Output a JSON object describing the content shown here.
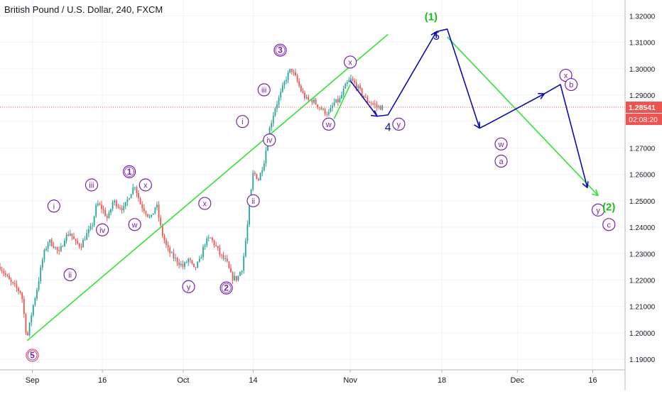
{
  "chart_data": {
    "type": "candlestick",
    "title": "British Pound / U.S. Dollar, 240, FXCM",
    "ylim": [
      1.186,
      1.326
    ],
    "y_ticks": [
      "1.19000",
      "1.20000",
      "1.21000",
      "1.22000",
      "1.23000",
      "1.24000",
      "1.25000",
      "1.26000",
      "1.27000",
      "1.28000",
      "1.29000",
      "1.30000",
      "1.31000",
      "1.32000"
    ],
    "x_domain": [
      "2018-08-28",
      "2018-12-22"
    ],
    "x_ticks": [
      {
        "date": "2018-09-03",
        "label": "Sep"
      },
      {
        "date": "2018-09-16",
        "label": "16"
      },
      {
        "date": "2018-10-01",
        "label": "Oct"
      },
      {
        "date": "2018-10-14",
        "label": "14"
      },
      {
        "date": "2018-11-01",
        "label": "Nov"
      },
      {
        "date": "2018-11-18",
        "label": "18"
      },
      {
        "date": "2018-12-02",
        "label": "Dec"
      },
      {
        "date": "2018-12-16",
        "label": "16"
      }
    ],
    "current_price": {
      "label": "1.28541",
      "value": 1.28541,
      "countdown": "02:08:20"
    },
    "colors": {
      "up": "#26a69a",
      "down": "#ef5350",
      "wave": "#0b0bb5",
      "trend": "#35e135",
      "label_purple": "#7a1fb0",
      "label_green": "#1bbd1b",
      "price": "#ef5350",
      "countdown": "#ef5350"
    },
    "price_path": [
      [
        "2018-08-28",
        1.225
      ],
      [
        "2018-08-30",
        1.219
      ],
      [
        "2018-09-01",
        1.215
      ],
      [
        "2018-09-02",
        1.1975
      ],
      [
        "2018-09-03",
        1.209
      ],
      [
        "2018-09-04",
        1.218
      ],
      [
        "2018-09-05",
        1.229
      ],
      [
        "2018-09-06",
        1.235
      ],
      [
        "2018-09-07",
        1.233
      ],
      [
        "2018-09-08",
        1.23
      ],
      [
        "2018-09-09",
        1.236
      ],
      [
        "2018-09-10",
        1.238
      ],
      [
        "2018-09-11",
        1.234
      ],
      [
        "2018-09-12",
        1.233
      ],
      [
        "2018-09-13",
        1.237
      ],
      [
        "2018-09-14",
        1.24
      ],
      [
        "2018-09-15",
        1.249
      ],
      [
        "2018-09-16",
        1.247
      ],
      [
        "2018-09-17",
        1.243
      ],
      [
        "2018-09-18",
        1.25
      ],
      [
        "2018-09-19",
        1.248
      ],
      [
        "2018-09-20",
        1.247
      ],
      [
        "2018-09-21",
        1.252
      ],
      [
        "2018-09-22",
        1.256
      ],
      [
        "2018-09-23",
        1.249
      ],
      [
        "2018-09-24",
        1.246
      ],
      [
        "2018-09-25",
        1.243
      ],
      [
        "2018-09-26",
        1.249
      ],
      [
        "2018-09-27",
        1.238
      ],
      [
        "2018-09-28",
        1.232
      ],
      [
        "2018-09-29",
        1.229
      ],
      [
        "2018-09-30",
        1.227
      ],
      [
        "2018-10-01",
        1.225
      ],
      [
        "2018-10-02",
        1.228
      ],
      [
        "2018-10-03",
        1.224
      ],
      [
        "2018-10-04",
        1.227
      ],
      [
        "2018-10-05",
        1.234
      ],
      [
        "2018-10-06",
        1.236
      ],
      [
        "2018-10-07",
        1.233
      ],
      [
        "2018-10-08",
        1.229
      ],
      [
        "2018-10-09",
        1.227
      ],
      [
        "2018-10-10",
        1.221
      ],
      [
        "2018-10-11",
        1.2205
      ],
      [
        "2018-10-12",
        1.225
      ],
      [
        "2018-10-13",
        1.242
      ],
      [
        "2018-10-14",
        1.261
      ],
      [
        "2018-10-15",
        1.258
      ],
      [
        "2018-10-16",
        1.265
      ],
      [
        "2018-10-17",
        1.277
      ],
      [
        "2018-10-18",
        1.285
      ],
      [
        "2018-10-19",
        1.29
      ],
      [
        "2018-10-20",
        1.296
      ],
      [
        "2018-10-21",
        1.3
      ],
      [
        "2018-10-22",
        1.296
      ],
      [
        "2018-10-23",
        1.291
      ],
      [
        "2018-10-24",
        1.288
      ],
      [
        "2018-10-25",
        1.288
      ],
      [
        "2018-10-26",
        1.286
      ],
      [
        "2018-10-27",
        1.284
      ],
      [
        "2018-10-28",
        1.283
      ],
      [
        "2018-10-29",
        1.287
      ],
      [
        "2018-10-30",
        1.288
      ],
      [
        "2018-10-31",
        1.293
      ],
      [
        "2018-11-01",
        1.296
      ],
      [
        "2018-11-02",
        1.294
      ],
      [
        "2018-11-03",
        1.291
      ],
      [
        "2018-11-04",
        1.288
      ],
      [
        "2018-11-05",
        1.287
      ],
      [
        "2018-11-06",
        1.2855
      ],
      [
        "2018-11-07",
        1.2854
      ]
    ],
    "trend_lines": [
      [
        [
          "2018-09-02",
          1.197
        ],
        [
          "2018-11-08",
          1.313
        ]
      ],
      [
        [
          "2018-11-19",
          1.312
        ],
        [
          "2018-12-17",
          1.252
        ]
      ],
      [
        [
          "2018-10-29",
          1.281
        ],
        [
          "2018-11-01",
          1.294
        ]
      ]
    ],
    "wave_path": [
      [
        "2018-11-01",
        1.2955
      ],
      [
        "2018-11-06",
        1.282
      ],
      [
        "2018-11-08",
        1.2825
      ],
      [
        "2018-11-17",
        1.314
      ],
      [
        "2018-11-19",
        1.315
      ],
      [
        "2018-11-25",
        1.2775
      ],
      [
        "2018-11-26",
        1.2785
      ],
      [
        "2018-12-07",
        1.2905
      ],
      [
        "2018-12-10",
        1.294
      ],
      [
        "2018-12-15",
        1.255
      ]
    ],
    "arrowheads": [
      [
        [
          "2018-11-04",
          1.285
        ],
        [
          "2018-11-06",
          1.282
        ]
      ],
      [
        [
          "2018-11-15",
          1.307
        ],
        [
          "2018-11-17",
          1.314
        ]
      ],
      [
        [
          "2018-11-24",
          1.281
        ],
        [
          "2018-11-25",
          1.2775
        ]
      ],
      [
        [
          "2018-12-05",
          1.2885
        ],
        [
          "2018-12-07",
          1.2905
        ]
      ],
      [
        [
          "2018-12-14",
          1.26
        ],
        [
          "2018-12-15",
          1.255
        ]
      ],
      [
        [
          "2018-12-15",
          1.2555
        ],
        [
          "2018-12-17",
          1.252
        ]
      ]
    ],
    "wave_labels": [
      {
        "text": "5",
        "date": "2018-09-03",
        "y": 1.1915,
        "style": "double-ring",
        "ring": "#ef5350"
      },
      {
        "text": "i",
        "date": "2018-09-07",
        "y": 1.248,
        "style": "circle"
      },
      {
        "text": "ii",
        "date": "2018-09-10",
        "y": 1.222,
        "style": "circle"
      },
      {
        "text": "iii",
        "date": "2018-09-14",
        "y": 1.256,
        "style": "circle"
      },
      {
        "text": "iv",
        "date": "2018-09-16",
        "y": 1.239,
        "style": "circle"
      },
      {
        "text": "1",
        "date": "2018-09-21",
        "y": 1.261,
        "style": "double-ring"
      },
      {
        "text": "x",
        "date": "2018-09-24",
        "y": 1.256,
        "style": "circle"
      },
      {
        "text": "w",
        "date": "2018-09-22",
        "y": 1.241,
        "style": "circle"
      },
      {
        "text": "y",
        "date": "2018-10-02",
        "y": 1.2175,
        "style": "circle"
      },
      {
        "text": "x",
        "date": "2018-10-05",
        "y": 1.249,
        "style": "circle"
      },
      {
        "text": "2",
        "date": "2018-10-09",
        "y": 1.217,
        "style": "double-ring"
      },
      {
        "text": "i",
        "date": "2018-10-12",
        "y": 1.28,
        "style": "circle"
      },
      {
        "text": "ii",
        "date": "2018-10-14",
        "y": 1.25,
        "style": "circle"
      },
      {
        "text": "iii",
        "date": "2018-10-16",
        "y": 1.292,
        "style": "circle"
      },
      {
        "text": "iv",
        "date": "2018-10-17",
        "y": 1.273,
        "style": "circle"
      },
      {
        "text": "3",
        "date": "2018-10-19",
        "y": 1.307,
        "style": "double-ring"
      },
      {
        "text": "w",
        "date": "2018-10-28",
        "y": 1.279,
        "style": "circle"
      },
      {
        "text": "x",
        "date": "2018-11-01",
        "y": 1.3025,
        "style": "circle"
      },
      {
        "text": "y",
        "date": "2018-11-10",
        "y": 1.279,
        "style": "circle"
      },
      {
        "text": "4",
        "date": "2018-11-08",
        "y": 1.278,
        "style": "plain"
      },
      {
        "text": "5",
        "date": "2018-11-17",
        "y": 1.3125,
        "style": "plain"
      },
      {
        "text": "(1)",
        "date": "2018-11-16",
        "y": 1.32,
        "style": "green-text"
      },
      {
        "text": "w",
        "date": "2018-11-29",
        "y": 1.2715,
        "style": "circle"
      },
      {
        "text": "a",
        "date": "2018-11-29",
        "y": 1.265,
        "style": "circle"
      },
      {
        "text": "x",
        "date": "2018-12-11",
        "y": 1.2975,
        "style": "circle"
      },
      {
        "text": "b",
        "date": "2018-12-12",
        "y": 1.294,
        "style": "circle"
      },
      {
        "text": "y",
        "date": "2018-12-17",
        "y": 1.2465,
        "style": "circle"
      },
      {
        "text": "(2)",
        "date": "2018-12-19",
        "y": 1.248,
        "style": "green-text"
      },
      {
        "text": "c",
        "date": "2018-12-19",
        "y": 1.241,
        "style": "circle"
      }
    ]
  }
}
